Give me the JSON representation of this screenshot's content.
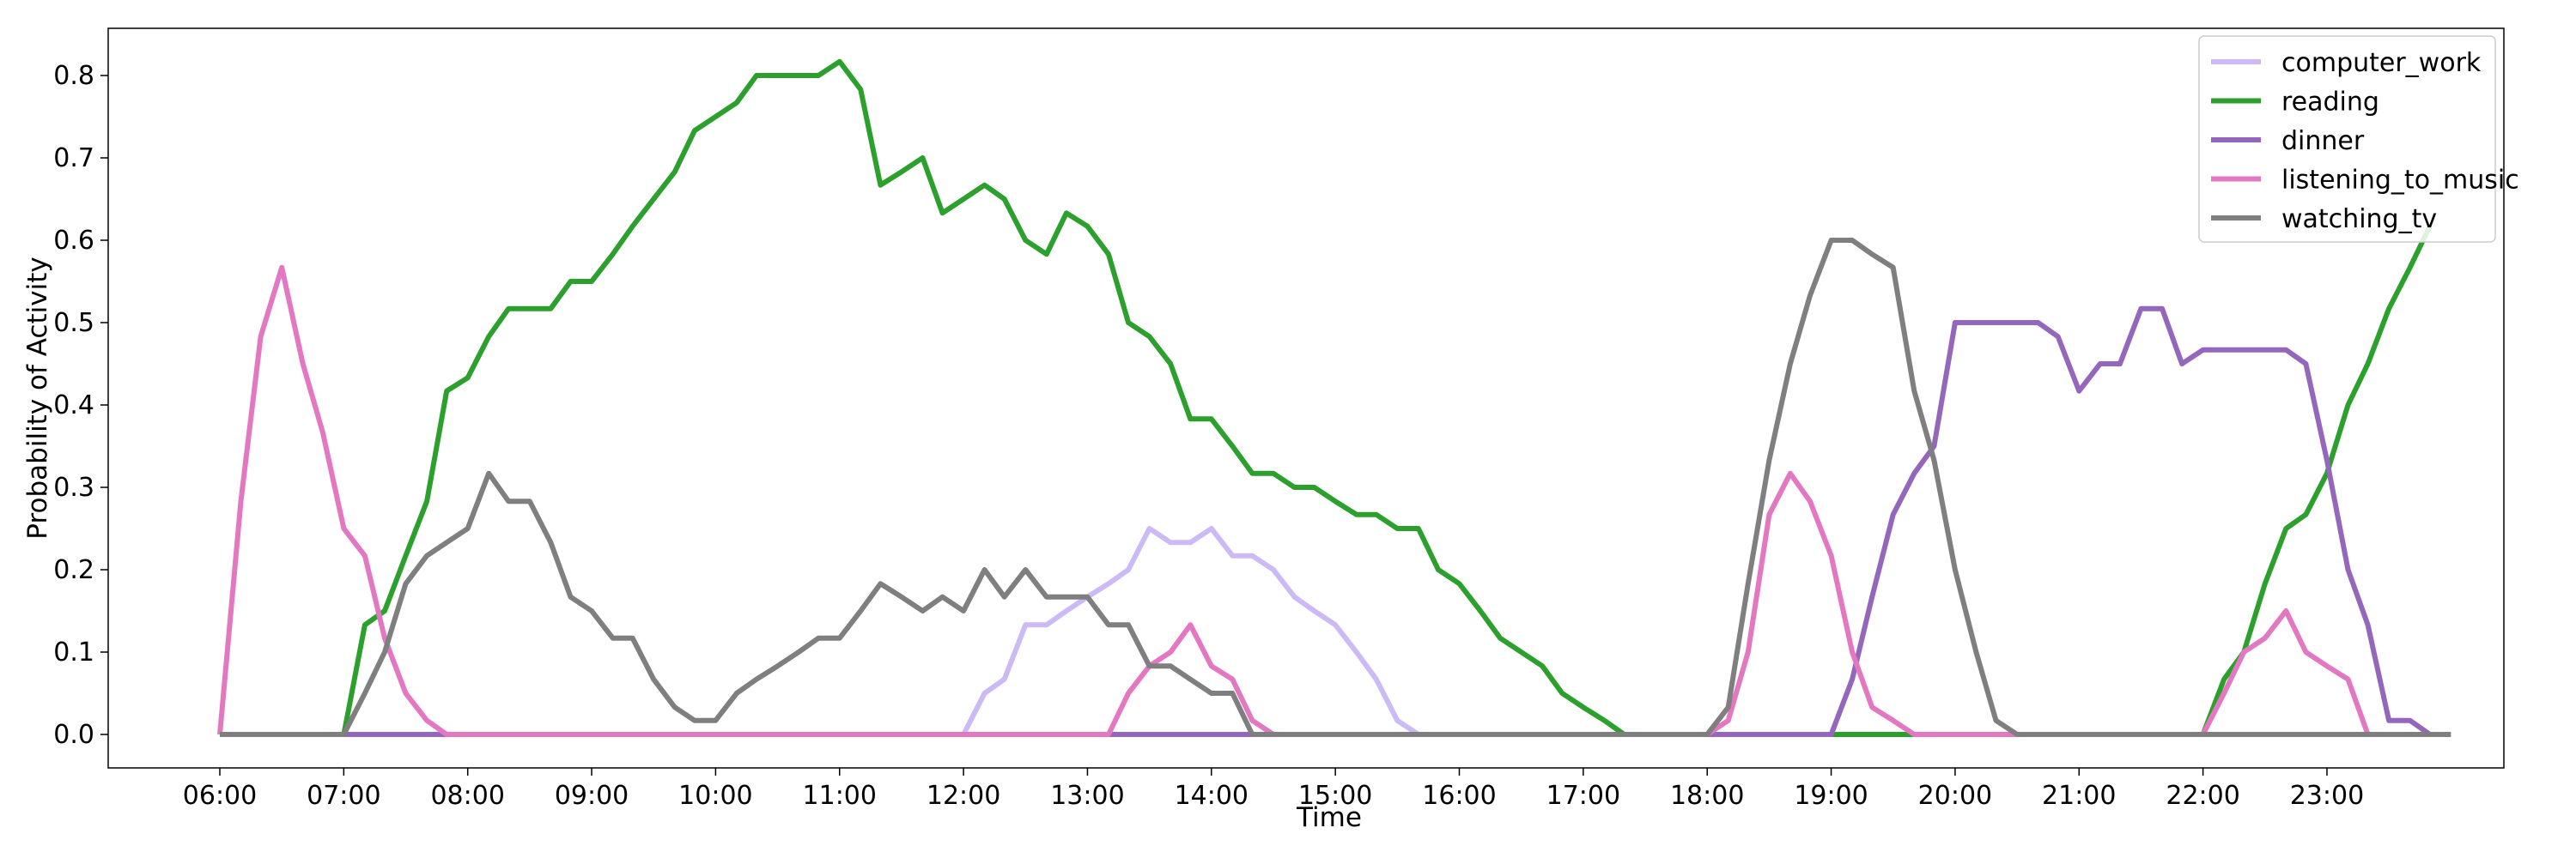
{
  "chart_data": {
    "type": "line",
    "title": "",
    "xlabel": "Time",
    "ylabel": "Probability of Activity",
    "xlim": [
      6,
      24
    ],
    "ylim": [
      0,
      0.85
    ],
    "x_ticks": [
      "06:00",
      "07:00",
      "08:00",
      "09:00",
      "10:00",
      "11:00",
      "12:00",
      "13:00",
      "14:00",
      "15:00",
      "16:00",
      "17:00",
      "18:00",
      "19:00",
      "20:00",
      "21:00",
      "22:00",
      "23:00"
    ],
    "y_ticks": [
      "0.0",
      "0.1",
      "0.2",
      "0.3",
      "0.4",
      "0.5",
      "0.6",
      "0.7",
      "0.8"
    ],
    "legend_position": "top-right",
    "series": [
      {
        "name": "computer_work",
        "color": "#cbbaf6",
        "x": [
          6.0,
          12.0,
          12.17,
          12.33,
          12.5,
          12.67,
          12.83,
          13.0,
          13.17,
          13.33,
          13.5,
          13.67,
          13.83,
          14.0,
          14.17,
          14.33,
          14.5,
          14.67,
          14.83,
          15.0,
          15.17,
          15.33,
          15.5,
          15.67,
          15.83,
          24.0
        ],
        "y": [
          0.0,
          0.0,
          0.05,
          0.067,
          0.133,
          0.133,
          0.15,
          0.167,
          0.183,
          0.2,
          0.25,
          0.233,
          0.233,
          0.25,
          0.217,
          0.217,
          0.2,
          0.167,
          0.15,
          0.133,
          0.1,
          0.067,
          0.017,
          0.0,
          0.0,
          0.0
        ]
      },
      {
        "name": "reading",
        "color": "#2ca02c",
        "x": [
          6.0,
          7.0,
          7.17,
          7.33,
          7.5,
          7.67,
          7.83,
          8.0,
          8.17,
          8.33,
          8.5,
          8.67,
          8.83,
          9.0,
          9.17,
          9.33,
          9.5,
          9.67,
          9.83,
          10.0,
          10.17,
          10.33,
          10.5,
          10.67,
          10.83,
          11.0,
          11.17,
          11.33,
          11.5,
          11.67,
          11.83,
          12.0,
          12.17,
          12.33,
          12.5,
          12.67,
          12.83,
          13.0,
          13.17,
          13.33,
          13.5,
          13.67,
          13.83,
          14.0,
          14.17,
          14.33,
          14.5,
          14.67,
          14.83,
          15.0,
          15.17,
          15.33,
          15.5,
          15.67,
          15.83,
          16.0,
          16.17,
          16.33,
          16.5,
          16.67,
          16.83,
          17.0,
          17.17,
          17.33,
          22.0,
          22.17,
          22.33,
          22.5,
          22.67,
          22.83,
          23.0,
          23.17,
          23.33,
          23.5,
          23.67,
          23.83
        ],
        "y": [
          0.0,
          0.0,
          0.133,
          0.15,
          0.217,
          0.283,
          0.417,
          0.433,
          0.483,
          0.517,
          0.517,
          0.517,
          0.55,
          0.55,
          0.583,
          0.617,
          0.65,
          0.683,
          0.733,
          0.75,
          0.767,
          0.8,
          0.8,
          0.8,
          0.8,
          0.817,
          0.783,
          0.667,
          0.683,
          0.7,
          0.633,
          0.65,
          0.667,
          0.65,
          0.6,
          0.583,
          0.633,
          0.617,
          0.583,
          0.5,
          0.483,
          0.45,
          0.383,
          0.383,
          0.35,
          0.317,
          0.317,
          0.3,
          0.3,
          0.283,
          0.267,
          0.267,
          0.25,
          0.25,
          0.2,
          0.183,
          0.15,
          0.117,
          0.1,
          0.083,
          0.05,
          0.033,
          0.017,
          0.0,
          0.0,
          0.067,
          0.1,
          0.183,
          0.25,
          0.267,
          0.317,
          0.4,
          0.45,
          0.517,
          0.567,
          0.617
        ]
      },
      {
        "name": "dinner",
        "color": "#9467bd",
        "x": [
          6.0,
          19.0,
          19.17,
          19.33,
          19.5,
          19.67,
          19.83,
          20.0,
          20.17,
          20.33,
          20.5,
          20.67,
          20.83,
          21.0,
          21.17,
          21.33,
          21.5,
          21.67,
          21.83,
          22.0,
          22.17,
          22.33,
          22.5,
          22.67,
          22.83,
          23.0,
          23.17,
          23.33,
          23.5,
          23.67,
          23.83
        ],
        "y": [
          0.0,
          0.0,
          0.067,
          0.167,
          0.267,
          0.317,
          0.35,
          0.5,
          0.5,
          0.5,
          0.5,
          0.5,
          0.483,
          0.417,
          0.45,
          0.45,
          0.517,
          0.517,
          0.45,
          0.467,
          0.467,
          0.467,
          0.467,
          0.467,
          0.45,
          0.333,
          0.2,
          0.133,
          0.017,
          0.017,
          0.0
        ]
      },
      {
        "name": "listening_to_music",
        "color": "#e377c2",
        "x": [
          6.0,
          6.17,
          6.33,
          6.5,
          6.67,
          6.83,
          7.0,
          7.17,
          7.33,
          7.5,
          7.67,
          7.83,
          13.17,
          13.33,
          13.5,
          13.67,
          13.83,
          14.0,
          14.17,
          14.33,
          14.5,
          18.0,
          18.17,
          18.33,
          18.5,
          18.67,
          18.83,
          19.0,
          19.17,
          19.33,
          19.5,
          19.67,
          22.0,
          22.17,
          22.33,
          22.5,
          22.67,
          22.83,
          23.0,
          23.17,
          23.33,
          23.83
        ],
        "y": [
          0.0,
          0.283,
          0.483,
          0.567,
          0.45,
          0.367,
          0.25,
          0.217,
          0.117,
          0.05,
          0.017,
          0.0,
          0.0,
          0.05,
          0.083,
          0.1,
          0.133,
          0.083,
          0.067,
          0.017,
          0.0,
          0.0,
          0.017,
          0.1,
          0.267,
          0.317,
          0.283,
          0.217,
          0.1,
          0.033,
          0.017,
          0.0,
          0.0,
          0.05,
          0.1,
          0.117,
          0.15,
          0.1,
          0.083,
          0.067,
          0.0,
          0.0
        ]
      },
      {
        "name": "watching_tv",
        "color": "#7f7f7f",
        "x": [
          6.0,
          7.0,
          7.17,
          7.33,
          7.5,
          7.67,
          7.83,
          8.0,
          8.17,
          8.33,
          8.5,
          8.67,
          8.83,
          9.0,
          9.17,
          9.33,
          9.5,
          9.67,
          9.83,
          10.0,
          10.17,
          10.33,
          10.5,
          10.67,
          10.83,
          11.0,
          11.17,
          11.33,
          11.5,
          11.67,
          11.83,
          12.0,
          12.17,
          12.33,
          12.5,
          12.67,
          12.83,
          13.0,
          13.17,
          13.33,
          13.5,
          13.67,
          13.83,
          14.0,
          14.17,
          14.33,
          18.0,
          18.17,
          18.33,
          18.5,
          18.67,
          18.83,
          19.0,
          19.17,
          19.33,
          19.5,
          19.67,
          19.83,
          20.0,
          20.17,
          20.33,
          20.5,
          24.0
        ],
        "y": [
          0.0,
          0.0,
          0.05,
          0.1,
          0.183,
          0.217,
          0.233,
          0.25,
          0.317,
          0.283,
          0.283,
          0.233,
          0.167,
          0.15,
          0.117,
          0.117,
          0.067,
          0.033,
          0.017,
          0.017,
          0.05,
          0.067,
          0.083,
          0.1,
          0.117,
          0.117,
          0.15,
          0.183,
          0.167,
          0.15,
          0.167,
          0.15,
          0.2,
          0.167,
          0.2,
          0.167,
          0.167,
          0.167,
          0.133,
          0.133,
          0.083,
          0.083,
          0.067,
          0.05,
          0.05,
          0.0,
          0.0,
          0.033,
          0.183,
          0.333,
          0.45,
          0.533,
          0.6,
          0.6,
          0.583,
          0.567,
          0.417,
          0.333,
          0.2,
          0.1,
          0.017,
          0.0,
          0.0
        ]
      }
    ]
  }
}
